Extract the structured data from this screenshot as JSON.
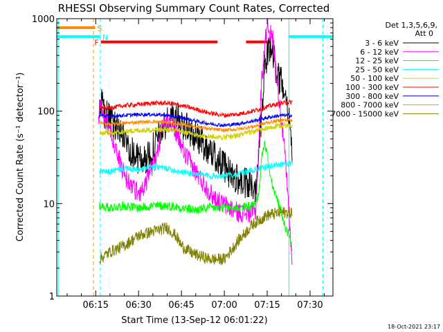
{
  "footer": {
    "timestamp": "18-Oct-2021 23:17"
  },
  "chart_data": {
    "type": "line",
    "title": "RHESSI Observing Summary Count Rates, Corrected",
    "xlabel": "Start Time (13-Sep-12 06:01:22)",
    "ylabel": "Corrected Count Rate (s⁻¹ detector⁻¹)",
    "y_scale": "log",
    "ylim": [
      1,
      1000
    ],
    "y_ticks": [
      {
        "value": 1,
        "label": "1"
      },
      {
        "value": 10,
        "label": "10"
      },
      {
        "value": 100,
        "label": "100"
      },
      {
        "value": 1000,
        "label": "1000"
      }
    ],
    "x_unit": "minutes",
    "xlim": [
      361.37,
      458.0
    ],
    "x_ticks": [
      {
        "value": 375,
        "label": "06:15"
      },
      {
        "value": 390,
        "label": "06:30"
      },
      {
        "value": 405,
        "label": "06:45"
      },
      {
        "value": 420,
        "label": "07:00"
      },
      {
        "value": 435,
        "label": "07:15"
      },
      {
        "value": 450,
        "label": "07:30"
      }
    ],
    "x_minor_step": 5,
    "legend": {
      "title": [
        "Det 1,3,5,6,9,",
        "Att 0"
      ],
      "placement": "right"
    },
    "data_start": 376.5,
    "data_end": 447.0,
    "series": [
      {
        "name": "3 - 6 keV",
        "color": "#000000",
        "noise": 0.35,
        "points": [
          [
            376.3,
            85
          ],
          [
            377,
            120
          ],
          [
            378,
            95
          ],
          [
            380,
            80
          ],
          [
            383,
            65
          ],
          [
            386,
            45
          ],
          [
            388,
            35
          ],
          [
            390,
            30
          ],
          [
            393,
            30
          ],
          [
            396,
            45
          ],
          [
            398,
            60
          ],
          [
            400,
            75
          ],
          [
            402,
            90
          ],
          [
            404,
            82
          ],
          [
            406,
            70
          ],
          [
            408,
            60
          ],
          [
            411,
            50
          ],
          [
            414,
            40
          ],
          [
            417,
            32
          ],
          [
            420,
            25
          ],
          [
            422,
            21
          ],
          [
            424,
            19
          ],
          [
            426,
            17
          ],
          [
            428,
            16
          ],
          [
            430,
            15
          ],
          [
            431,
            15
          ],
          [
            432,
            40
          ],
          [
            433,
            90
          ],
          [
            434,
            300
          ],
          [
            435,
            380
          ],
          [
            436,
            500
          ],
          [
            437,
            420
          ],
          [
            438,
            300
          ],
          [
            439,
            230
          ],
          [
            440,
            200
          ],
          [
            441,
            200
          ],
          [
            442,
            120
          ],
          [
            443,
            80
          ],
          [
            443.8,
            25
          ]
        ]
      },
      {
        "name": "6 - 12 keV",
        "color": "#ff00ff",
        "noise": 0.22,
        "points": [
          [
            376,
            85
          ],
          [
            377,
            110
          ],
          [
            378,
            90
          ],
          [
            380,
            60
          ],
          [
            382,
            40
          ],
          [
            384,
            25
          ],
          [
            386,
            18
          ],
          [
            388,
            15
          ],
          [
            390,
            13
          ],
          [
            392,
            15
          ],
          [
            394,
            22
          ],
          [
            396,
            30
          ],
          [
            397,
            40
          ],
          [
            398,
            60
          ],
          [
            400,
            80
          ],
          [
            401,
            85
          ],
          [
            402,
            70
          ],
          [
            404,
            50
          ],
          [
            406,
            35
          ],
          [
            408,
            28
          ],
          [
            410,
            22
          ],
          [
            413,
            16
          ],
          [
            416,
            12
          ],
          [
            419,
            10
          ],
          [
            422,
            9
          ],
          [
            425,
            8
          ],
          [
            428,
            8
          ],
          [
            430,
            8
          ],
          [
            431,
            8
          ],
          [
            432,
            40
          ],
          [
            433,
            200
          ],
          [
            434,
            450
          ],
          [
            435,
            900
          ],
          [
            436,
            700
          ],
          [
            437,
            600
          ],
          [
            438,
            300
          ],
          [
            439,
            150
          ],
          [
            440,
            80
          ],
          [
            441,
            40
          ],
          [
            442,
            15
          ],
          [
            443,
            5
          ],
          [
            443.8,
            2
          ]
        ]
      },
      {
        "name": "12 - 25 keV",
        "color": "#00ff00",
        "noise": 0.1,
        "points": [
          [
            376.3,
            9.5
          ],
          [
            380,
            9
          ],
          [
            385,
            9.5
          ],
          [
            390,
            9
          ],
          [
            395,
            9.5
          ],
          [
            400,
            9.5
          ],
          [
            405,
            9
          ],
          [
            410,
            8.5
          ],
          [
            415,
            9
          ],
          [
            420,
            9
          ],
          [
            425,
            9
          ],
          [
            430,
            9.5
          ],
          [
            432,
            12
          ],
          [
            433,
            30
          ],
          [
            434,
            45
          ],
          [
            435,
            35
          ],
          [
            436,
            20
          ],
          [
            437,
            15
          ],
          [
            438,
            12
          ],
          [
            439,
            10
          ],
          [
            440,
            8
          ],
          [
            441,
            6
          ],
          [
            442,
            5
          ],
          [
            443,
            4.5
          ],
          [
            443.8,
            3
          ]
        ]
      },
      {
        "name": "25 - 50 keV",
        "color": "#00ffff",
        "noise": 0.07,
        "points": [
          [
            376.3,
            22
          ],
          [
            380,
            22
          ],
          [
            385,
            24
          ],
          [
            390,
            23
          ],
          [
            395,
            25
          ],
          [
            400,
            24
          ],
          [
            405,
            22
          ],
          [
            410,
            21
          ],
          [
            415,
            20
          ],
          [
            420,
            20
          ],
          [
            425,
            21
          ],
          [
            430,
            23
          ],
          [
            435,
            25
          ],
          [
            440,
            27
          ],
          [
            443.8,
            27
          ]
        ]
      },
      {
        "name": "50 - 100 keV",
        "color": "#d0d000",
        "noise": 0.06,
        "points": [
          [
            376.3,
            58
          ],
          [
            380,
            58
          ],
          [
            385,
            60
          ],
          [
            390,
            62
          ],
          [
            395,
            63
          ],
          [
            400,
            63
          ],
          [
            405,
            60
          ],
          [
            410,
            55
          ],
          [
            415,
            53
          ],
          [
            420,
            52
          ],
          [
            425,
            55
          ],
          [
            430,
            60
          ],
          [
            435,
            65
          ],
          [
            440,
            70
          ],
          [
            443.8,
            70
          ]
        ]
      },
      {
        "name": "100 - 300 keV",
        "color": "#ff0000",
        "noise": 0.05,
        "points": [
          [
            376.3,
            110
          ],
          [
            380,
            108
          ],
          [
            385,
            115
          ],
          [
            390,
            118
          ],
          [
            395,
            122
          ],
          [
            400,
            122
          ],
          [
            405,
            115
          ],
          [
            410,
            105
          ],
          [
            415,
            95
          ],
          [
            420,
            90
          ],
          [
            425,
            93
          ],
          [
            430,
            100
          ],
          [
            435,
            112
          ],
          [
            440,
            122
          ],
          [
            443.8,
            125
          ]
        ]
      },
      {
        "name": "300 - 800 keV",
        "color": "#0000ff",
        "noise": 0.04,
        "points": [
          [
            376.3,
            90
          ],
          [
            380,
            88
          ],
          [
            385,
            90
          ],
          [
            390,
            92
          ],
          [
            395,
            92
          ],
          [
            400,
            90
          ],
          [
            405,
            85
          ],
          [
            410,
            78
          ],
          [
            415,
            73
          ],
          [
            420,
            70
          ],
          [
            425,
            73
          ],
          [
            430,
            78
          ],
          [
            435,
            85
          ],
          [
            440,
            90
          ],
          [
            443.8,
            90
          ]
        ]
      },
      {
        "name": "800 - 7000 keV",
        "color": "#ff8c00",
        "noise": 0.04,
        "points": [
          [
            376.3,
            75
          ],
          [
            380,
            72
          ],
          [
            385,
            74
          ],
          [
            390,
            76
          ],
          [
            395,
            77
          ],
          [
            400,
            76
          ],
          [
            405,
            72
          ],
          [
            410,
            68
          ],
          [
            415,
            64
          ],
          [
            420,
            62
          ],
          [
            425,
            64
          ],
          [
            430,
            68
          ],
          [
            435,
            75
          ],
          [
            440,
            80
          ],
          [
            443.8,
            80
          ]
        ]
      },
      {
        "name": "7000 - 15000 keV",
        "color": "#808000",
        "noise": 0.13,
        "points": [
          [
            376.3,
            2.5
          ],
          [
            380,
            3
          ],
          [
            385,
            3.5
          ],
          [
            390,
            4.5
          ],
          [
            395,
            5
          ],
          [
            400,
            5.5
          ],
          [
            403,
            4.5
          ],
          [
            405,
            3.5
          ],
          [
            408,
            3
          ],
          [
            410,
            2.8
          ],
          [
            415,
            2.5
          ],
          [
            420,
            2.5
          ],
          [
            425,
            4
          ],
          [
            430,
            6
          ],
          [
            435,
            7.5
          ],
          [
            440,
            8
          ],
          [
            443.8,
            8
          ]
        ]
      }
    ],
    "bars": [
      {
        "label": "S",
        "color": "#ff8c00",
        "y": 800,
        "segments": [
          [
            361.4,
            374.8
          ]
        ]
      },
      {
        "label": "N",
        "color": "#00ffff",
        "y": 640,
        "segments": [
          [
            361.4,
            376.6
          ],
          [
            442.6,
            458.0
          ]
        ]
      },
      {
        "label": "F",
        "color": "#ff0000",
        "y": 560,
        "segments": [
          [
            376.8,
            417.6
          ],
          [
            427.6,
            436.3
          ]
        ]
      }
    ],
    "vlines": [
      {
        "x": 361.9,
        "color": "#00ffff",
        "style": "solid"
      },
      {
        "x": 374.2,
        "color": "#ff8c00",
        "style": "dashed"
      },
      {
        "x": 376.6,
        "color": "#00ffff",
        "style": "dashed"
      },
      {
        "x": 442.6,
        "color": "#00ffff",
        "style": "solid"
      },
      {
        "x": 454.5,
        "color": "#00ffff",
        "style": "dashed"
      }
    ]
  }
}
